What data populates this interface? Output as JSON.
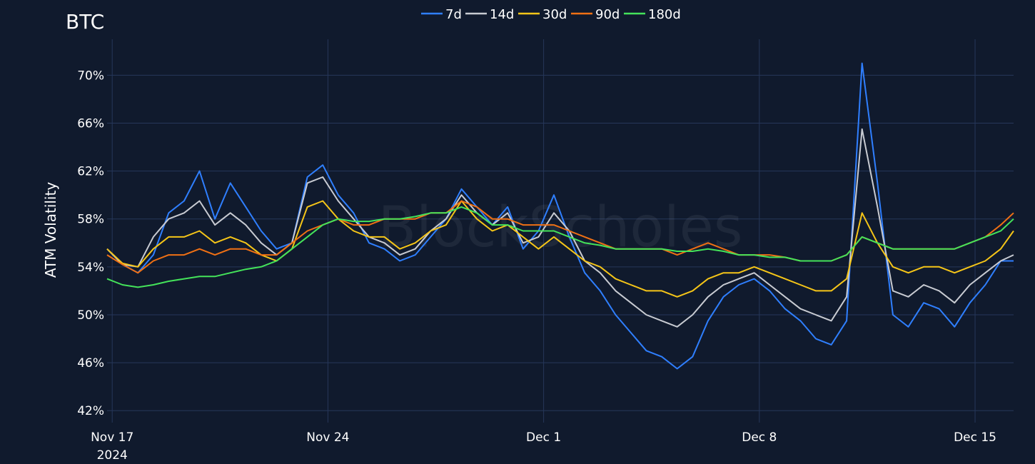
{
  "chart_data": {
    "type": "line",
    "title": "BTC",
    "ylabel": "ATM Volatility",
    "xlabel": "",
    "watermark": "BlockScholes",
    "ylim": [
      41,
      73
    ],
    "y_ticks": [
      42,
      46,
      50,
      54,
      58,
      62,
      66,
      70
    ],
    "y_tick_labels": [
      "42%",
      "46%",
      "50%",
      "54%",
      "58%",
      "62%",
      "66%",
      "70%"
    ],
    "xlim": [
      "2024-11-16T20:00",
      "2024-12-16T06:00"
    ],
    "x_ticks": [
      "2024-11-17",
      "2024-11-24",
      "2024-12-01",
      "2024-12-08",
      "2024-12-15"
    ],
    "x_tick_labels": [
      "Nov 17",
      "Nov 24",
      "Dec 1",
      "Dec 8",
      "Dec 15"
    ],
    "x_year_label": "2024",
    "grid": true,
    "legend_position": "top-center",
    "x": [
      "2024-11-16T20:00",
      "2024-11-17T08:00",
      "2024-11-17T20:00",
      "2024-11-18T08:00",
      "2024-11-18T20:00",
      "2024-11-19T08:00",
      "2024-11-19T20:00",
      "2024-11-20T08:00",
      "2024-11-20T20:00",
      "2024-11-21T08:00",
      "2024-11-21T20:00",
      "2024-11-22T08:00",
      "2024-11-22T20:00",
      "2024-11-23T08:00",
      "2024-11-23T20:00",
      "2024-11-24T08:00",
      "2024-11-24T20:00",
      "2024-11-25T08:00",
      "2024-11-25T20:00",
      "2024-11-26T08:00",
      "2024-11-26T20:00",
      "2024-11-27T08:00",
      "2024-11-27T20:00",
      "2024-11-28T08:00",
      "2024-11-28T20:00",
      "2024-11-29T08:00",
      "2024-11-29T20:00",
      "2024-11-30T08:00",
      "2024-11-30T20:00",
      "2024-12-01T08:00",
      "2024-12-01T20:00",
      "2024-12-02T08:00",
      "2024-12-02T20:00",
      "2024-12-03T08:00",
      "2024-12-03T20:00",
      "2024-12-04T08:00",
      "2024-12-04T20:00",
      "2024-12-05T08:00",
      "2024-12-05T20:00",
      "2024-12-06T08:00",
      "2024-12-06T20:00",
      "2024-12-07T08:00",
      "2024-12-07T20:00",
      "2024-12-08T08:00",
      "2024-12-08T20:00",
      "2024-12-09T08:00",
      "2024-12-09T20:00",
      "2024-12-10T08:00",
      "2024-12-10T20:00",
      "2024-12-11T08:00",
      "2024-12-11T20:00",
      "2024-12-12T08:00",
      "2024-12-12T20:00",
      "2024-12-13T08:00",
      "2024-12-13T20:00",
      "2024-12-14T08:00",
      "2024-12-14T20:00",
      "2024-12-15T08:00",
      "2024-12-15T20:00",
      "2024-12-16T06:00"
    ],
    "series": [
      {
        "name": "7d",
        "color": "#2f7fff",
        "values": [
          55.5,
          54.2,
          53.5,
          55.0,
          58.5,
          59.5,
          62.0,
          58.0,
          61.0,
          59.0,
          57.0,
          55.5,
          56.0,
          61.5,
          62.5,
          60.0,
          58.5,
          56.0,
          55.5,
          54.5,
          55.0,
          56.5,
          58.0,
          60.5,
          59.0,
          57.5,
          59.0,
          55.5,
          57.0,
          60.0,
          56.5,
          53.5,
          52.0,
          50.0,
          48.5,
          47.0,
          46.5,
          45.5,
          46.5,
          49.5,
          51.5,
          52.5,
          53.0,
          52.0,
          50.5,
          49.5,
          48.0,
          47.5,
          49.5,
          71.0,
          61.0,
          50.0,
          49.0,
          51.0,
          50.5,
          49.0,
          51.0,
          52.5,
          54.5,
          54.5
        ]
      },
      {
        "name": "14d",
        "color": "#c8cbd2",
        "values": [
          55.5,
          54.2,
          54.0,
          56.5,
          58.0,
          58.5,
          59.5,
          57.5,
          58.5,
          57.5,
          56.0,
          55.0,
          56.0,
          61.0,
          61.5,
          59.5,
          58.0,
          56.5,
          56.0,
          55.0,
          55.5,
          57.0,
          58.0,
          60.0,
          58.5,
          57.5,
          58.5,
          56.0,
          56.5,
          58.5,
          57.0,
          54.5,
          53.5,
          52.0,
          51.0,
          50.0,
          49.5,
          49.0,
          50.0,
          51.5,
          52.5,
          53.0,
          53.5,
          52.5,
          51.5,
          50.5,
          50.0,
          49.5,
          51.5,
          65.5,
          59.0,
          52.0,
          51.5,
          52.5,
          52.0,
          51.0,
          52.5,
          53.5,
          54.5,
          55.0
        ]
      },
      {
        "name": "30d",
        "color": "#f5c518",
        "values": [
          55.5,
          54.3,
          54.0,
          55.5,
          56.5,
          56.5,
          57.0,
          56.0,
          56.5,
          56.0,
          55.0,
          54.5,
          55.5,
          59.0,
          59.5,
          58.0,
          57.0,
          56.5,
          56.5,
          55.5,
          56.0,
          57.0,
          57.5,
          59.5,
          58.0,
          57.0,
          57.5,
          56.5,
          55.5,
          56.5,
          55.5,
          54.5,
          54.0,
          53.0,
          52.5,
          52.0,
          52.0,
          51.5,
          52.0,
          53.0,
          53.5,
          53.5,
          54.0,
          53.5,
          53.0,
          52.5,
          52.0,
          52.0,
          53.0,
          58.5,
          56.0,
          54.0,
          53.5,
          54.0,
          54.0,
          53.5,
          54.0,
          54.5,
          55.5,
          57.0
        ]
      },
      {
        "name": "90d",
        "color": "#f07014",
        "values": [
          55.0,
          54.2,
          53.5,
          54.5,
          55.0,
          55.0,
          55.5,
          55.0,
          55.5,
          55.5,
          55.0,
          55.0,
          56.0,
          57.0,
          57.5,
          58.0,
          57.5,
          57.5,
          58.0,
          58.0,
          58.0,
          58.5,
          58.5,
          59.5,
          59.0,
          58.0,
          58.0,
          57.5,
          57.5,
          57.5,
          57.0,
          56.5,
          56.0,
          55.5,
          55.5,
          55.5,
          55.5,
          55.0,
          55.5,
          56.0,
          55.5,
          55.0,
          55.0,
          55.0,
          54.8,
          54.5,
          54.5,
          54.5,
          55.0,
          56.5,
          56.0,
          55.5,
          55.5,
          55.5,
          55.5,
          55.5,
          56.0,
          56.5,
          57.5,
          58.5
        ]
      },
      {
        "name": "180d",
        "color": "#44e35a",
        "values": [
          53.0,
          52.5,
          52.3,
          52.5,
          52.8,
          53.0,
          53.2,
          53.2,
          53.5,
          53.8,
          54.0,
          54.5,
          55.5,
          56.5,
          57.5,
          58.0,
          57.8,
          57.8,
          58.0,
          58.0,
          58.2,
          58.5,
          58.5,
          59.0,
          58.5,
          57.5,
          57.5,
          57.0,
          57.0,
          57.0,
          56.5,
          56.0,
          55.8,
          55.5,
          55.5,
          55.5,
          55.5,
          55.3,
          55.3,
          55.5,
          55.3,
          55.0,
          55.0,
          54.8,
          54.8,
          54.5,
          54.5,
          54.5,
          55.0,
          56.5,
          56.0,
          55.5,
          55.5,
          55.5,
          55.5,
          55.5,
          56.0,
          56.5,
          57.0,
          58.0
        ]
      }
    ]
  }
}
